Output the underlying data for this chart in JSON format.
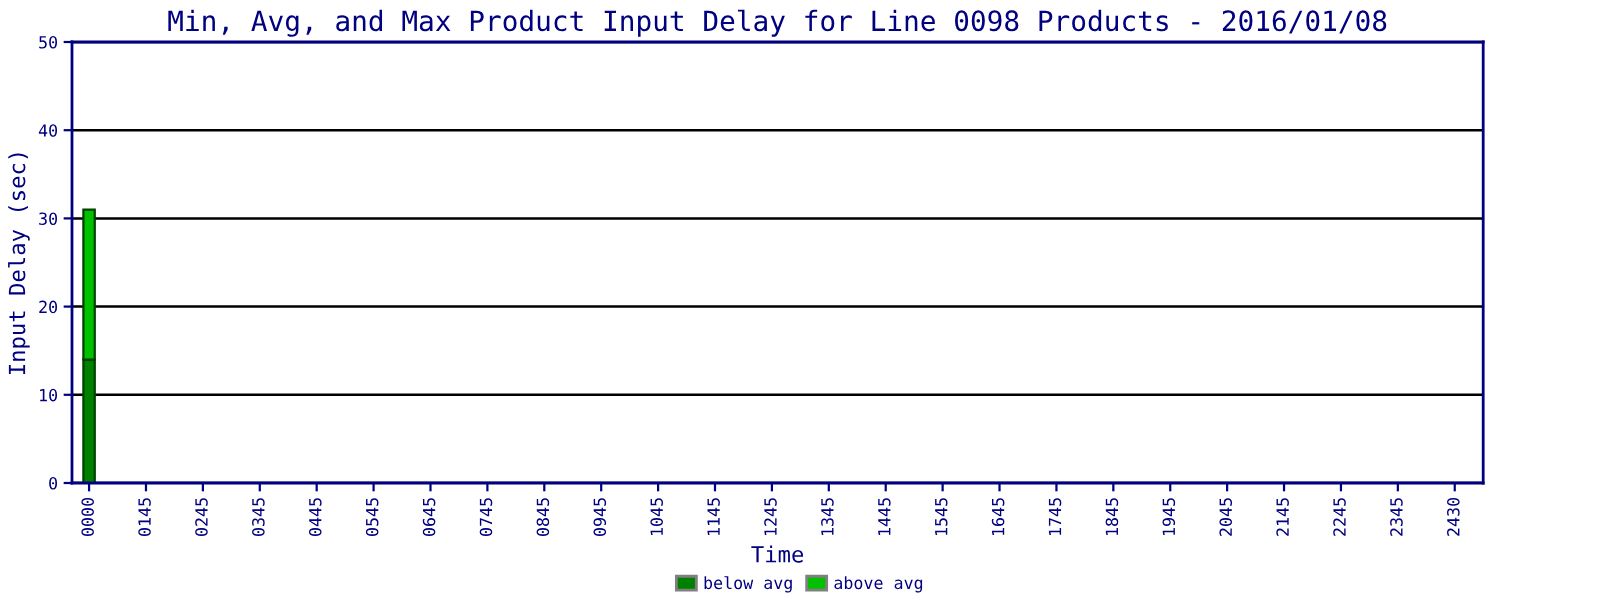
{
  "chart_data": {
    "type": "bar",
    "stacked": true,
    "title": "Min, Avg, and Max Product Input Delay for Line 0098 Products - 2016/01/08",
    "xlabel": "Time",
    "ylabel": "Input Delay (sec)",
    "categories": [
      "0000",
      "0145",
      "0245",
      "0345",
      "0445",
      "0545",
      "0645",
      "0745",
      "0845",
      "0945",
      "1045",
      "1145",
      "1245",
      "1345",
      "1445",
      "1545",
      "1645",
      "1745",
      "1845",
      "1945",
      "2045",
      "2145",
      "2245",
      "2345",
      "2430"
    ],
    "series": [
      {
        "name": "below avg",
        "color": "#008000",
        "values": [
          14,
          null,
          null,
          null,
          null,
          null,
          null,
          null,
          null,
          null,
          null,
          null,
          null,
          null,
          null,
          null,
          null,
          null,
          null,
          null,
          null,
          null,
          null,
          null,
          null
        ]
      },
      {
        "name": "above avg",
        "color": "#00c000",
        "values": [
          17,
          null,
          null,
          null,
          null,
          null,
          null,
          null,
          null,
          null,
          null,
          null,
          null,
          null,
          null,
          null,
          null,
          null,
          null,
          null,
          null,
          null,
          null,
          null,
          null
        ]
      }
    ],
    "ylim": [
      0,
      50
    ],
    "yticks": [
      0,
      10,
      20,
      30,
      40,
      50
    ],
    "grid": "y",
    "legend": "bottom"
  }
}
